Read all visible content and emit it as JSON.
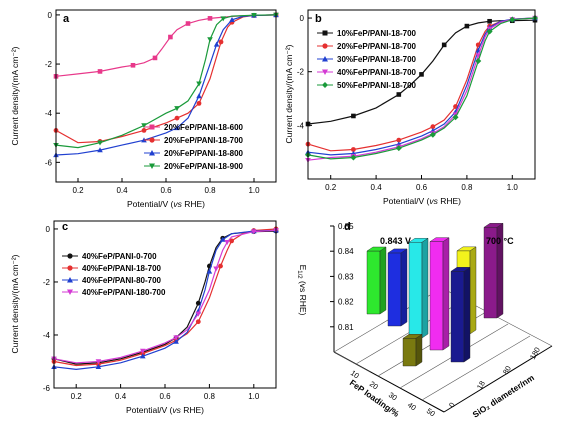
{
  "chart_data": [
    {
      "panel": "a",
      "type": "line",
      "xlabel_prefix": "Potential/V (",
      "xlabel_italic": "vs",
      "xlabel_suffix": " RHE)",
      "ylabel": "Current density/(mA cm⁻²)",
      "xlim": [
        0.1,
        1.1
      ],
      "ylim": [
        -6.8,
        0.2
      ],
      "x_ticks": [
        0.2,
        0.4,
        0.6,
        0.8,
        1.0
      ],
      "x_tick_labels": [
        "0.2",
        "0.4",
        "0.6",
        "0.8",
        "1.0"
      ],
      "y_ticks": [
        0,
        -2,
        -4,
        -6
      ],
      "y_tick_labels": [
        "0",
        "-2",
        "-4",
        "-6"
      ],
      "legend_position": "bottom-right",
      "series": [
        {
          "name": "20%FeP/PANI-18-600",
          "color": "#e8388a",
          "marker": "square",
          "x": [
            0.1,
            0.2,
            0.3,
            0.4,
            0.45,
            0.5,
            0.55,
            0.58,
            0.62,
            0.65,
            0.7,
            0.75,
            0.8,
            0.9,
            1.0,
            1.1
          ],
          "y": [
            -2.5,
            -2.4,
            -2.3,
            -2.12,
            -2.05,
            -1.95,
            -1.75,
            -1.4,
            -0.9,
            -0.6,
            -0.35,
            -0.22,
            -0.14,
            -0.06,
            -0.02,
            0.0
          ]
        },
        {
          "name": "20%FeP/PANI-18-700",
          "color": "#e53030",
          "marker": "circle",
          "x": [
            0.1,
            0.2,
            0.3,
            0.4,
            0.5,
            0.6,
            0.65,
            0.7,
            0.75,
            0.8,
            0.85,
            0.88,
            0.9,
            0.95,
            1.0,
            1.1
          ],
          "y": [
            -4.7,
            -5.2,
            -5.15,
            -4.95,
            -4.7,
            -4.4,
            -4.2,
            -4.0,
            -3.6,
            -2.6,
            -1.1,
            -0.5,
            -0.3,
            -0.08,
            -0.02,
            0.0
          ]
        },
        {
          "name": "20%FeP/PANI-18-800",
          "color": "#2040d0",
          "marker": "triangle-up",
          "x": [
            0.1,
            0.2,
            0.3,
            0.4,
            0.5,
            0.6,
            0.65,
            0.7,
            0.75,
            0.8,
            0.83,
            0.86,
            0.9,
            0.95,
            1.0,
            1.1
          ],
          "y": [
            -5.7,
            -5.65,
            -5.5,
            -5.3,
            -5.1,
            -4.8,
            -4.6,
            -4.2,
            -3.3,
            -2.0,
            -1.2,
            -0.6,
            -0.2,
            -0.06,
            -0.02,
            0.0
          ]
        },
        {
          "name": "20%FeP/PANI-18-900",
          "color": "#1a9a3a",
          "marker": "triangle-down",
          "x": [
            0.1,
            0.2,
            0.3,
            0.4,
            0.5,
            0.6,
            0.65,
            0.7,
            0.75,
            0.78,
            0.8,
            0.83,
            0.86,
            0.9,
            1.0,
            1.1
          ],
          "y": [
            -5.3,
            -5.4,
            -5.2,
            -4.9,
            -4.5,
            -4.0,
            -3.8,
            -3.5,
            -2.8,
            -1.8,
            -1.0,
            -0.4,
            -0.15,
            -0.05,
            -0.01,
            0.0
          ]
        }
      ]
    },
    {
      "panel": "b",
      "type": "line",
      "xlabel_prefix": "Potential/V (",
      "xlabel_italic": "vs",
      "xlabel_suffix": " RHE)",
      "ylabel": "Current density/(mA cm⁻²)",
      "xlim": [
        0.1,
        1.1
      ],
      "ylim": [
        -6.0,
        0.3
      ],
      "x_ticks": [
        0.2,
        0.4,
        0.6,
        0.8,
        1.0
      ],
      "x_tick_labels": [
        "0.2",
        "0.4",
        "0.6",
        "0.8",
        "1.0"
      ],
      "y_ticks": [
        0,
        -2,
        -4
      ],
      "y_tick_labels": [
        "0",
        "-2",
        "-4"
      ],
      "legend_position": "top-left",
      "series": [
        {
          "name": "10%FeP/PANI-18-700",
          "color": "#111111",
          "marker": "square",
          "x": [
            0.1,
            0.2,
            0.3,
            0.4,
            0.5,
            0.55,
            0.6,
            0.65,
            0.7,
            0.75,
            0.8,
            0.85,
            0.9,
            0.95,
            1.0,
            1.1
          ],
          "y": [
            -3.95,
            -3.85,
            -3.65,
            -3.35,
            -2.85,
            -2.5,
            -2.1,
            -1.6,
            -1.0,
            -0.55,
            -0.3,
            -0.18,
            -0.12,
            -0.1,
            -0.1,
            -0.08
          ]
        },
        {
          "name": "20%FeP/PANI-18-700",
          "color": "#e53030",
          "marker": "circle",
          "x": [
            0.1,
            0.2,
            0.3,
            0.4,
            0.5,
            0.6,
            0.65,
            0.7,
            0.75,
            0.8,
            0.85,
            0.88,
            0.9,
            0.95,
            1.0,
            1.1
          ],
          "y": [
            -4.7,
            -4.95,
            -4.9,
            -4.75,
            -4.55,
            -4.25,
            -4.05,
            -3.8,
            -3.3,
            -2.3,
            -1.0,
            -0.5,
            -0.3,
            -0.12,
            -0.05,
            0.0
          ]
        },
        {
          "name": "30%FeP/PANI-18-700",
          "color": "#2040d0",
          "marker": "triangle-up",
          "x": [
            0.1,
            0.2,
            0.3,
            0.4,
            0.5,
            0.6,
            0.65,
            0.7,
            0.75,
            0.8,
            0.85,
            0.88,
            0.9,
            0.95,
            1.0,
            1.1
          ],
          "y": [
            -5.0,
            -5.1,
            -5.05,
            -4.9,
            -4.7,
            -4.4,
            -4.2,
            -3.95,
            -3.5,
            -2.5,
            -1.2,
            -0.6,
            -0.35,
            -0.12,
            -0.04,
            0.0
          ]
        },
        {
          "name": "40%FeP/PANI-18-700",
          "color": "#d43ad4",
          "marker": "triangle-down",
          "x": [
            0.1,
            0.2,
            0.3,
            0.4,
            0.5,
            0.6,
            0.65,
            0.7,
            0.75,
            0.8,
            0.85,
            0.88,
            0.9,
            0.95,
            1.0,
            1.1
          ],
          "y": [
            -5.3,
            -5.2,
            -5.15,
            -5.0,
            -4.8,
            -4.5,
            -4.3,
            -4.05,
            -3.6,
            -2.7,
            -1.4,
            -0.7,
            -0.4,
            -0.15,
            -0.05,
            0.0
          ]
        },
        {
          "name": "50%FeP/PANI-18-700",
          "color": "#1a9a3a",
          "marker": "diamond",
          "x": [
            0.1,
            0.2,
            0.3,
            0.4,
            0.5,
            0.6,
            0.65,
            0.7,
            0.75,
            0.8,
            0.85,
            0.88,
            0.9,
            0.95,
            1.0,
            1.1
          ],
          "y": [
            -5.1,
            -5.25,
            -5.2,
            -5.05,
            -4.85,
            -4.55,
            -4.35,
            -4.1,
            -3.7,
            -2.9,
            -1.6,
            -0.85,
            -0.5,
            -0.2,
            -0.06,
            0.0
          ]
        }
      ]
    },
    {
      "panel": "c",
      "type": "line",
      "xlabel_prefix": "Potential/V (",
      "xlabel_italic": "vs",
      "xlabel_suffix": " RHE)",
      "ylabel": "Current density/(mA cm⁻²)",
      "xlim": [
        0.1,
        1.1
      ],
      "ylim": [
        -6.0,
        0.3
      ],
      "x_ticks": [
        0.2,
        0.4,
        0.6,
        0.8,
        1.0
      ],
      "x_tick_labels": [
        "0.2",
        "0.4",
        "0.6",
        "0.8",
        "1.0"
      ],
      "y_ticks": [
        0,
        -2,
        -4,
        -6
      ],
      "y_tick_labels": [
        "0",
        "-2",
        "-4",
        "-6"
      ],
      "legend_position": "top-left",
      "series": [
        {
          "name": "40%FeP/PANI-0-700",
          "color": "#111111",
          "marker": "circle",
          "x": [
            0.1,
            0.2,
            0.3,
            0.4,
            0.5,
            0.6,
            0.65,
            0.7,
            0.75,
            0.78,
            0.8,
            0.83,
            0.86,
            0.9,
            1.0,
            1.1
          ],
          "y": [
            -4.9,
            -5.1,
            -5.05,
            -4.9,
            -4.65,
            -4.35,
            -4.1,
            -3.7,
            -2.8,
            -2.0,
            -1.4,
            -0.7,
            -0.35,
            -0.18,
            -0.1,
            -0.08
          ]
        },
        {
          "name": "40%FeP/PANI-18-700",
          "color": "#e53030",
          "marker": "circle",
          "x": [
            0.1,
            0.2,
            0.3,
            0.4,
            0.5,
            0.6,
            0.65,
            0.7,
            0.75,
            0.8,
            0.85,
            0.88,
            0.9,
            0.95,
            1.0,
            1.1
          ],
          "y": [
            -5.0,
            -5.15,
            -5.1,
            -4.95,
            -4.7,
            -4.4,
            -4.2,
            -3.95,
            -3.5,
            -2.6,
            -1.4,
            -0.8,
            -0.45,
            -0.18,
            -0.06,
            0.0
          ]
        },
        {
          "name": "40%FeP/PANI-80-700",
          "color": "#2040d0",
          "marker": "triangle-up",
          "x": [
            0.1,
            0.2,
            0.3,
            0.4,
            0.5,
            0.6,
            0.65,
            0.7,
            0.75,
            0.78,
            0.8,
            0.83,
            0.86,
            0.9,
            1.0,
            1.1
          ],
          "y": [
            -5.2,
            -5.3,
            -5.2,
            -5.05,
            -4.8,
            -4.5,
            -4.25,
            -3.9,
            -3.1,
            -2.3,
            -1.6,
            -0.8,
            -0.4,
            -0.18,
            -0.08,
            -0.05
          ]
        },
        {
          "name": "40%FeP/PANI-180-700",
          "color": "#d43ad4",
          "marker": "triangle-down",
          "x": [
            0.1,
            0.2,
            0.3,
            0.4,
            0.5,
            0.6,
            0.65,
            0.7,
            0.75,
            0.8,
            0.83,
            0.86,
            0.88,
            0.9,
            1.0,
            1.1
          ],
          "y": [
            -4.9,
            -5.05,
            -5.0,
            -4.85,
            -4.6,
            -4.3,
            -4.1,
            -3.8,
            -3.2,
            -2.3,
            -1.5,
            -0.8,
            -0.5,
            -0.3,
            -0.1,
            -0.05
          ]
        }
      ]
    },
    {
      "panel": "d",
      "type": "bar",
      "bar_style": "3d",
      "ylabel_prefix": "E",
      "ylabel_sub": "1/2",
      "ylabel_suffix": " (vs RHE)",
      "xlabel": "FeP loading/%",
      "zlabel": "SiO₂ diameter/nm",
      "ylim": [
        0.8,
        0.85
      ],
      "y_ticks": [
        0.81,
        0.82,
        0.83,
        0.84,
        0.85
      ],
      "y_tick_labels": [
        "0.81",
        "0.82",
        "0.83",
        "0.84",
        "0.85"
      ],
      "loading_tick_labels": [
        "10",
        "20",
        "30",
        "40",
        "50"
      ],
      "diameter_tick_labels": [
        "0",
        "18",
        "80",
        "180"
      ],
      "annotations": [
        {
          "text": "0.843 V"
        },
        {
          "text": "700 °C"
        }
      ],
      "bars": [
        {
          "loading": 10,
          "diameter": 18,
          "value": 0.825,
          "color": "#2ee82e"
        },
        {
          "loading": 20,
          "diameter": 18,
          "value": 0.829,
          "color": "#1e2ee0"
        },
        {
          "loading": 30,
          "diameter": 18,
          "value": 0.838,
          "color": "#28e8e8"
        },
        {
          "loading": 40,
          "diameter": 18,
          "value": 0.843,
          "color": "#f02cf0"
        },
        {
          "loading": 50,
          "diameter": 18,
          "value": 0.836,
          "color": "#1a1a90"
        },
        {
          "loading": 40,
          "diameter": 0,
          "value": 0.811,
          "color": "#7a7a10"
        },
        {
          "loading": 40,
          "diameter": 80,
          "value": 0.833,
          "color": "#f2f21c"
        },
        {
          "loading": 40,
          "diameter": 180,
          "value": 0.836,
          "color": "#8a1a8a"
        }
      ]
    }
  ]
}
